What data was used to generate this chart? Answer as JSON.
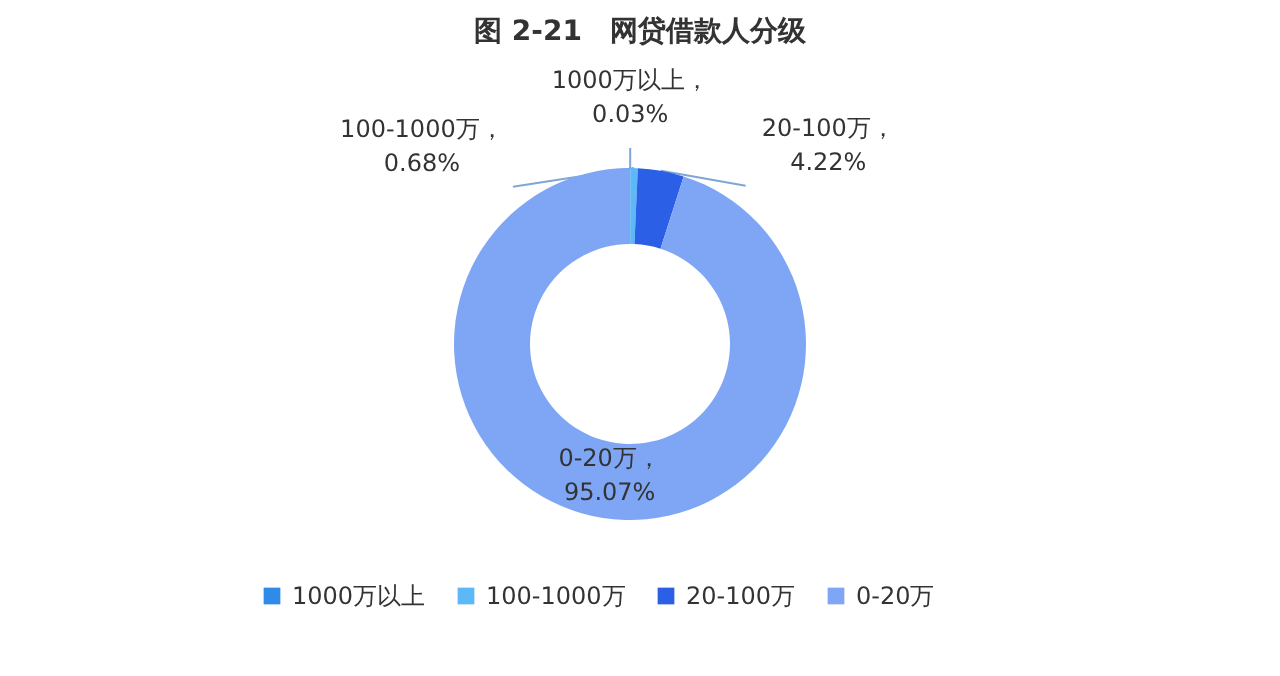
{
  "chart_data": {
    "type": "donut",
    "title": "图 2-21　网贷借款人分级",
    "categories": [
      "1000万以上",
      "100-1000万",
      "20-100万",
      "0-20万"
    ],
    "values": [
      0.03,
      0.68,
      4.22,
      95.07
    ],
    "colors": [
      "#2e8be8",
      "#5cb8f7",
      "#2a5fe6",
      "#7fa6f5"
    ],
    "value_labels": [
      "1000万以上，0.03%",
      "100-1000万，0.68%",
      "20-100万，4.22%",
      "0-20万，95.07%"
    ],
    "legend": "bottom"
  }
}
